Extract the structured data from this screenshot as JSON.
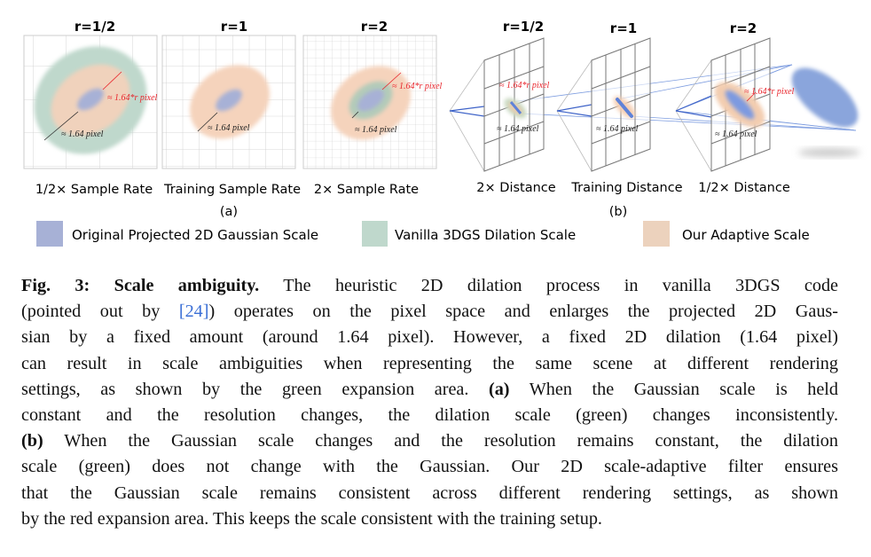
{
  "figure": {
    "panel_a": {
      "titles": [
        "r=1/2",
        "r=1",
        "r=2"
      ],
      "labels": [
        "1/2× Sample Rate",
        "Training Sample Rate",
        "2× Sample Rate"
      ],
      "sublabel": "(a)"
    },
    "panel_b": {
      "titles": [
        "r=1/2",
        "r=1",
        "r=2"
      ],
      "labels": [
        "2× Distance",
        "Training Distance",
        "1/2× Distance"
      ],
      "sublabel": "(b)"
    },
    "annotations": {
      "red": "≈ 1.64*r pixel",
      "black": "≈ 1.64 pixel"
    },
    "legend": [
      {
        "label": "Original Projected 2D Gaussian Scale",
        "color": "#a7b1d6"
      },
      {
        "label": "Vanilla 3DGS Dilation Scale",
        "color": "#bfd8cc"
      },
      {
        "label": "Our Adaptive Scale",
        "color": "#ecd2bd"
      }
    ],
    "colors": {
      "gaussian": "#a7b1d6",
      "dilation": "#bfd8cc",
      "adaptive": "#f5d3bc",
      "red": "#e8242b"
    }
  },
  "caption": {
    "fig_label": "Fig. 3:",
    "title": "Scale ambiguity.",
    "lines": [
      "The heuristic 2D dilation process in vanilla 3DGS code",
      "(pointed out by ",
      "[24]",
      ") operates on the pixel space and enlarges the projected 2D Gaus-",
      "sian by a fixed amount (around 1.64 pixel). However, a fixed 2D dilation (1.64 pixel)",
      "can result in scale ambiguities when representing the same scene at different rendering",
      "settings, as shown by the green expansion area. ",
      "(a)",
      " When the Gaussian scale is held",
      "constant and the resolution changes, the dilation scale (green) changes inconsistently.",
      "(b)",
      " When the Gaussian scale changes and the resolution remains constant, the dilation",
      "scale (green) does not change with the Gaussian. Our 2D scale-adaptive filter ensures",
      "that the Gaussian scale remains consistent across different rendering settings, as shown",
      "by the red expansion area. This keeps the scale consistent with the training setup."
    ]
  }
}
